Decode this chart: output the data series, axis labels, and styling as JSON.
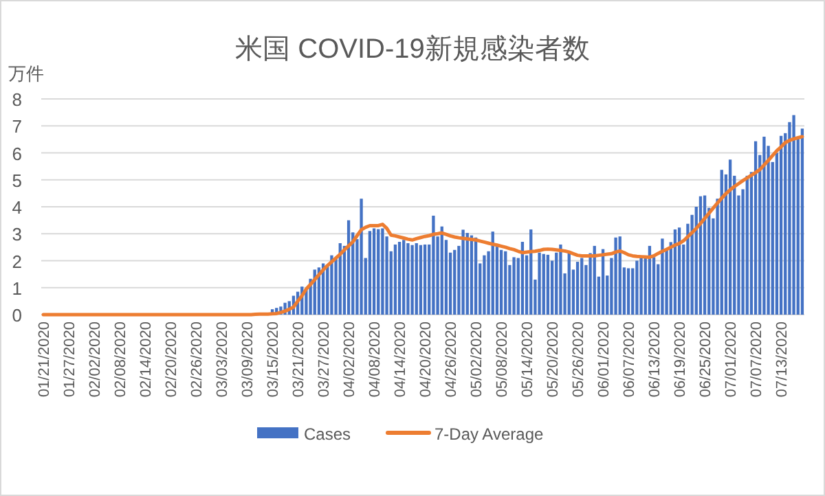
{
  "chart_data": {
    "type": "bar",
    "title": "米国 COVID-19新規感染者数",
    "ylabel": "万件",
    "ylim": [
      0,
      8
    ],
    "yticks": [
      0,
      1,
      2,
      3,
      4,
      5,
      6,
      7,
      8
    ],
    "grid": "y",
    "legend": "bottom",
    "categories": [
      "01/21/2020",
      null,
      null,
      null,
      null,
      null,
      "01/27/2020",
      null,
      null,
      null,
      null,
      null,
      "02/02/2020",
      null,
      null,
      null,
      null,
      null,
      "02/08/2020",
      null,
      null,
      null,
      null,
      null,
      "02/14/2020",
      null,
      null,
      null,
      null,
      null,
      "02/20/2020",
      null,
      null,
      null,
      null,
      null,
      "02/26/2020",
      null,
      null,
      null,
      null,
      null,
      "03/03/2020",
      null,
      null,
      null,
      null,
      null,
      "03/09/2020",
      null,
      null,
      null,
      null,
      null,
      "03/15/2020",
      null,
      null,
      null,
      null,
      null,
      "03/21/2020",
      null,
      null,
      null,
      null,
      null,
      "03/27/2020",
      null,
      null,
      null,
      null,
      null,
      "04/02/2020",
      null,
      null,
      null,
      null,
      null,
      "04/08/2020",
      null,
      null,
      null,
      null,
      null,
      "04/14/2020",
      null,
      null,
      null,
      null,
      null,
      "04/20/2020",
      null,
      null,
      null,
      null,
      null,
      "04/26/2020",
      null,
      null,
      null,
      null,
      null,
      "05/02/2020",
      null,
      null,
      null,
      null,
      null,
      "05/08/2020",
      null,
      null,
      null,
      null,
      null,
      "05/14/2020",
      null,
      null,
      null,
      null,
      null,
      "05/20/2020",
      null,
      null,
      null,
      null,
      null,
      "05/26/2020",
      null,
      null,
      null,
      null,
      null,
      "06/01/2020",
      null,
      null,
      null,
      null,
      null,
      "06/07/2020",
      null,
      null,
      null,
      null,
      null,
      "06/13/2020",
      null,
      null,
      null,
      null,
      null,
      "06/19/2020",
      null,
      null,
      null,
      null,
      null,
      "06/25/2020",
      null,
      null,
      null,
      null,
      null,
      "07/01/2020",
      null,
      null,
      null,
      null,
      null,
      "07/07/2020",
      null,
      null,
      null,
      null,
      null,
      "07/13/2020",
      null,
      null,
      null,
      null,
      null
    ],
    "series": [
      {
        "name": "Cases",
        "type": "bar",
        "color": "#4472c4",
        "values": [
          0,
          0,
          0,
          0,
          0,
          0,
          0,
          0,
          0,
          0,
          0,
          0,
          0,
          0,
          0,
          0,
          0,
          0,
          0,
          0,
          0,
          0,
          0,
          0,
          0,
          0,
          0,
          0,
          0,
          0,
          0,
          0,
          0,
          0,
          0,
          0,
          0,
          0,
          0,
          0,
          0,
          0,
          0,
          0,
          0,
          0,
          0,
          0,
          0,
          0,
          0,
          0,
          0,
          0,
          0.2,
          0.25,
          0.3,
          0.44,
          0.5,
          0.7,
          0.85,
          1.04,
          0.95,
          1.33,
          1.67,
          1.75,
          1.9,
          1.78,
          2.2,
          2.07,
          2.65,
          2.55,
          3.5,
          3.05,
          2.8,
          4.3,
          2.1,
          3.1,
          3.2,
          3.17,
          3.2,
          2.9,
          2.35,
          2.6,
          2.7,
          2.77,
          2.65,
          2.58,
          2.65,
          2.58,
          2.6,
          2.6,
          3.67,
          2.9,
          3.27,
          2.77,
          2.3,
          2.4,
          2.55,
          3.15,
          3.03,
          2.94,
          2.86,
          1.9,
          2.2,
          2.35,
          3.08,
          2.52,
          2.4,
          2.35,
          1.84,
          2.13,
          2.1,
          2.7,
          2.2,
          3.16,
          1.3,
          2.3,
          2.25,
          2.22,
          2.0,
          2.3,
          2.6,
          1.53,
          2.28,
          1.67,
          1.96,
          2.1,
          1.84,
          2.28,
          2.55,
          1.41,
          2.43,
          1.45,
          2.1,
          2.86,
          2.9,
          1.75,
          1.72,
          1.72,
          2.0,
          2.1,
          2.1,
          2.55,
          2.13,
          1.87,
          2.82,
          2.43,
          2.69,
          3.16,
          3.23,
          2.6,
          3.37,
          3.7,
          4.0,
          4.39,
          4.42,
          3.96,
          3.57,
          4.3,
          5.37,
          5.2,
          5.75,
          5.15,
          4.42,
          4.65,
          5.15,
          5.29,
          6.43,
          5.92,
          6.6,
          6.26,
          5.66,
          6.0,
          6.63,
          6.73,
          7.14,
          7.4,
          6.6,
          6.9
        ]
      },
      {
        "name": "7-Day Average",
        "type": "line",
        "color": "#ed7d31",
        "values": [
          0,
          0,
          0,
          0,
          0,
          0,
          0,
          0,
          0,
          0,
          0,
          0,
          0,
          0,
          0,
          0,
          0,
          0,
          0,
          0,
          0,
          0,
          0,
          0,
          0,
          0,
          0,
          0,
          0,
          0,
          0,
          0,
          0,
          0,
          0,
          0,
          0,
          0,
          0,
          0,
          0,
          0,
          0,
          0,
          0,
          0,
          0,
          0,
          0,
          0,
          0.01,
          0.02,
          0.02,
          0.02,
          0.03,
          0.04,
          0.08,
          0.13,
          0.2,
          0.28,
          0.5,
          0.7,
          0.95,
          1.12,
          1.3,
          1.48,
          1.66,
          1.82,
          1.96,
          2.1,
          2.24,
          2.4,
          2.55,
          2.7,
          2.93,
          3.15,
          3.24,
          3.3,
          3.3,
          3.3,
          3.35,
          3.2,
          2.95,
          2.92,
          2.88,
          2.84,
          2.8,
          2.77,
          2.82,
          2.86,
          2.9,
          2.93,
          2.98,
          3.0,
          3.03,
          2.98,
          2.92,
          2.88,
          2.85,
          2.83,
          2.81,
          2.79,
          2.77,
          2.73,
          2.69,
          2.65,
          2.61,
          2.58,
          2.54,
          2.5,
          2.45,
          2.41,
          2.35,
          2.3,
          2.32,
          2.34,
          2.35,
          2.38,
          2.42,
          2.43,
          2.42,
          2.4,
          2.38,
          2.36,
          2.32,
          2.26,
          2.2,
          2.18,
          2.18,
          2.18,
          2.18,
          2.2,
          2.22,
          2.24,
          2.26,
          2.32,
          2.36,
          2.3,
          2.22,
          2.18,
          2.16,
          2.15,
          2.14,
          2.13,
          2.18,
          2.27,
          2.35,
          2.42,
          2.5,
          2.58,
          2.64,
          2.74,
          2.89,
          3.04,
          3.2,
          3.38,
          3.57,
          3.76,
          3.95,
          4.14,
          4.32,
          4.49,
          4.63,
          4.75,
          4.86,
          4.97,
          5.07,
          5.17,
          5.27,
          5.38,
          5.55,
          5.72,
          5.9,
          6.08,
          6.22,
          6.38,
          6.46,
          6.52,
          6.56,
          6.6
        ]
      }
    ]
  }
}
